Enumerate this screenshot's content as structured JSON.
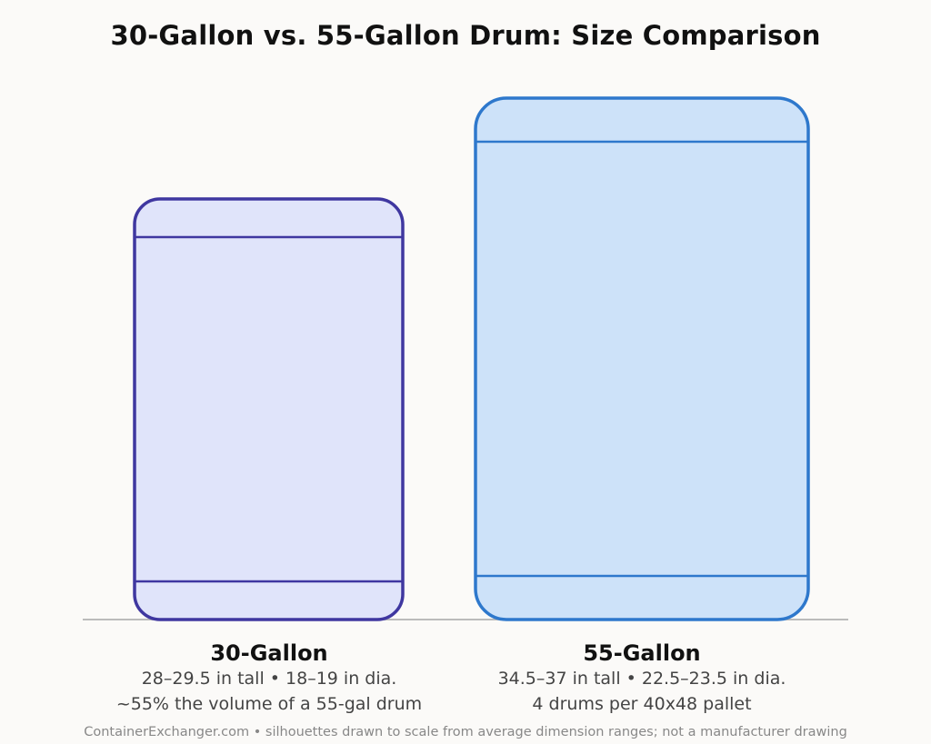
{
  "title": "30-Gallon vs. 55-Gallon Drum: Size Comparison",
  "drums": [
    {
      "name": "30-Gallon",
      "spec_line": "28–29.5 in tall • 18–19 in dia.",
      "note_line": "~55% the volume of a 55-gal drum",
      "stroke_color": "#3f37a0",
      "fill_color": "#e0e4fa"
    },
    {
      "name": "55-Gallon",
      "spec_line": "34.5–37 in tall • 22.5–23.5 in dia.",
      "note_line": "4 drums per 40x48 pallet",
      "stroke_color": "#2e78cc",
      "fill_color": "#cde2f9"
    }
  ],
  "footnote": "ContainerExchanger.com • silhouettes drawn to scale from average dimension ranges; not a manufacturer drawing"
}
